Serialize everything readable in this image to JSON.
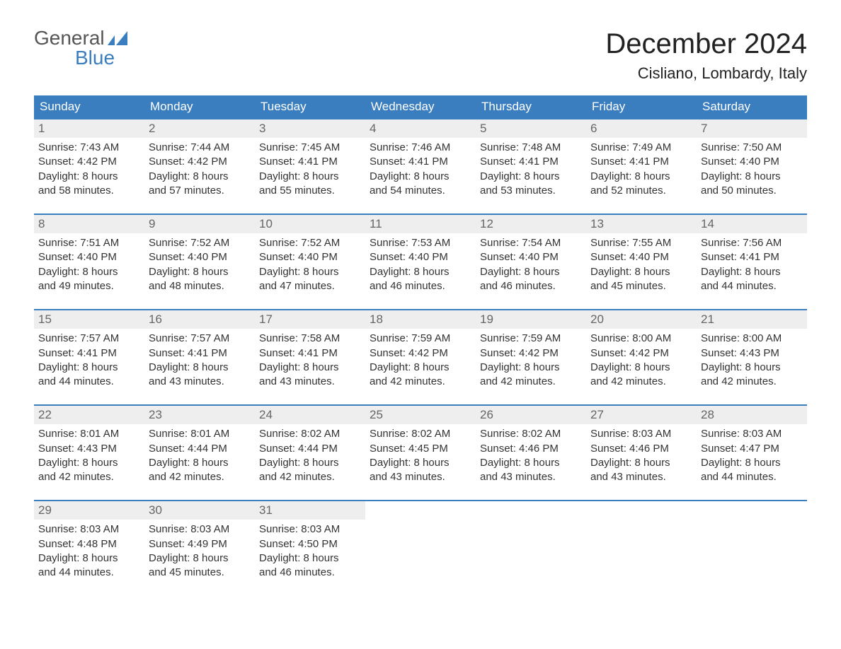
{
  "colors": {
    "header_bg": "#3a7ebf",
    "header_text": "#ffffff",
    "row_accent": "#3a7ebf",
    "daynum_bg": "#eeeeee",
    "daynum_text": "#666666",
    "body_text": "#333333",
    "page_bg": "#ffffff",
    "logo_gray": "#555555",
    "logo_blue": "#3a7ebf",
    "title_text": "#222222"
  },
  "typography": {
    "title_fontsize": 40,
    "location_fontsize": 22,
    "weekday_fontsize": 17,
    "daynum_fontsize": 17,
    "cell_fontsize": 15,
    "logo_fontsize": 28,
    "font_family": "Arial, Helvetica, sans-serif"
  },
  "logo": {
    "general": "General",
    "blue": "Blue"
  },
  "title": "December 2024",
  "location": "Cisliano, Lombardy, Italy",
  "weekdays": [
    "Sunday",
    "Monday",
    "Tuesday",
    "Wednesday",
    "Thursday",
    "Friday",
    "Saturday"
  ],
  "weeks": [
    [
      {
        "num": "1",
        "sunrise": "Sunrise: 7:43 AM",
        "sunset": "Sunset: 4:42 PM",
        "day1": "Daylight: 8 hours",
        "day2": "and 58 minutes."
      },
      {
        "num": "2",
        "sunrise": "Sunrise: 7:44 AM",
        "sunset": "Sunset: 4:42 PM",
        "day1": "Daylight: 8 hours",
        "day2": "and 57 minutes."
      },
      {
        "num": "3",
        "sunrise": "Sunrise: 7:45 AM",
        "sunset": "Sunset: 4:41 PM",
        "day1": "Daylight: 8 hours",
        "day2": "and 55 minutes."
      },
      {
        "num": "4",
        "sunrise": "Sunrise: 7:46 AM",
        "sunset": "Sunset: 4:41 PM",
        "day1": "Daylight: 8 hours",
        "day2": "and 54 minutes."
      },
      {
        "num": "5",
        "sunrise": "Sunrise: 7:48 AM",
        "sunset": "Sunset: 4:41 PM",
        "day1": "Daylight: 8 hours",
        "day2": "and 53 minutes."
      },
      {
        "num": "6",
        "sunrise": "Sunrise: 7:49 AM",
        "sunset": "Sunset: 4:41 PM",
        "day1": "Daylight: 8 hours",
        "day2": "and 52 minutes."
      },
      {
        "num": "7",
        "sunrise": "Sunrise: 7:50 AM",
        "sunset": "Sunset: 4:40 PM",
        "day1": "Daylight: 8 hours",
        "day2": "and 50 minutes."
      }
    ],
    [
      {
        "num": "8",
        "sunrise": "Sunrise: 7:51 AM",
        "sunset": "Sunset: 4:40 PM",
        "day1": "Daylight: 8 hours",
        "day2": "and 49 minutes."
      },
      {
        "num": "9",
        "sunrise": "Sunrise: 7:52 AM",
        "sunset": "Sunset: 4:40 PM",
        "day1": "Daylight: 8 hours",
        "day2": "and 48 minutes."
      },
      {
        "num": "10",
        "sunrise": "Sunrise: 7:52 AM",
        "sunset": "Sunset: 4:40 PM",
        "day1": "Daylight: 8 hours",
        "day2": "and 47 minutes."
      },
      {
        "num": "11",
        "sunrise": "Sunrise: 7:53 AM",
        "sunset": "Sunset: 4:40 PM",
        "day1": "Daylight: 8 hours",
        "day2": "and 46 minutes."
      },
      {
        "num": "12",
        "sunrise": "Sunrise: 7:54 AM",
        "sunset": "Sunset: 4:40 PM",
        "day1": "Daylight: 8 hours",
        "day2": "and 46 minutes."
      },
      {
        "num": "13",
        "sunrise": "Sunrise: 7:55 AM",
        "sunset": "Sunset: 4:40 PM",
        "day1": "Daylight: 8 hours",
        "day2": "and 45 minutes."
      },
      {
        "num": "14",
        "sunrise": "Sunrise: 7:56 AM",
        "sunset": "Sunset: 4:41 PM",
        "day1": "Daylight: 8 hours",
        "day2": "and 44 minutes."
      }
    ],
    [
      {
        "num": "15",
        "sunrise": "Sunrise: 7:57 AM",
        "sunset": "Sunset: 4:41 PM",
        "day1": "Daylight: 8 hours",
        "day2": "and 44 minutes."
      },
      {
        "num": "16",
        "sunrise": "Sunrise: 7:57 AM",
        "sunset": "Sunset: 4:41 PM",
        "day1": "Daylight: 8 hours",
        "day2": "and 43 minutes."
      },
      {
        "num": "17",
        "sunrise": "Sunrise: 7:58 AM",
        "sunset": "Sunset: 4:41 PM",
        "day1": "Daylight: 8 hours",
        "day2": "and 43 minutes."
      },
      {
        "num": "18",
        "sunrise": "Sunrise: 7:59 AM",
        "sunset": "Sunset: 4:42 PM",
        "day1": "Daylight: 8 hours",
        "day2": "and 42 minutes."
      },
      {
        "num": "19",
        "sunrise": "Sunrise: 7:59 AM",
        "sunset": "Sunset: 4:42 PM",
        "day1": "Daylight: 8 hours",
        "day2": "and 42 minutes."
      },
      {
        "num": "20",
        "sunrise": "Sunrise: 8:00 AM",
        "sunset": "Sunset: 4:42 PM",
        "day1": "Daylight: 8 hours",
        "day2": "and 42 minutes."
      },
      {
        "num": "21",
        "sunrise": "Sunrise: 8:00 AM",
        "sunset": "Sunset: 4:43 PM",
        "day1": "Daylight: 8 hours",
        "day2": "and 42 minutes."
      }
    ],
    [
      {
        "num": "22",
        "sunrise": "Sunrise: 8:01 AM",
        "sunset": "Sunset: 4:43 PM",
        "day1": "Daylight: 8 hours",
        "day2": "and 42 minutes."
      },
      {
        "num": "23",
        "sunrise": "Sunrise: 8:01 AM",
        "sunset": "Sunset: 4:44 PM",
        "day1": "Daylight: 8 hours",
        "day2": "and 42 minutes."
      },
      {
        "num": "24",
        "sunrise": "Sunrise: 8:02 AM",
        "sunset": "Sunset: 4:44 PM",
        "day1": "Daylight: 8 hours",
        "day2": "and 42 minutes."
      },
      {
        "num": "25",
        "sunrise": "Sunrise: 8:02 AM",
        "sunset": "Sunset: 4:45 PM",
        "day1": "Daylight: 8 hours",
        "day2": "and 43 minutes."
      },
      {
        "num": "26",
        "sunrise": "Sunrise: 8:02 AM",
        "sunset": "Sunset: 4:46 PM",
        "day1": "Daylight: 8 hours",
        "day2": "and 43 minutes."
      },
      {
        "num": "27",
        "sunrise": "Sunrise: 8:03 AM",
        "sunset": "Sunset: 4:46 PM",
        "day1": "Daylight: 8 hours",
        "day2": "and 43 minutes."
      },
      {
        "num": "28",
        "sunrise": "Sunrise: 8:03 AM",
        "sunset": "Sunset: 4:47 PM",
        "day1": "Daylight: 8 hours",
        "day2": "and 44 minutes."
      }
    ],
    [
      {
        "num": "29",
        "sunrise": "Sunrise: 8:03 AM",
        "sunset": "Sunset: 4:48 PM",
        "day1": "Daylight: 8 hours",
        "day2": "and 44 minutes."
      },
      {
        "num": "30",
        "sunrise": "Sunrise: 8:03 AM",
        "sunset": "Sunset: 4:49 PM",
        "day1": "Daylight: 8 hours",
        "day2": "and 45 minutes."
      },
      {
        "num": "31",
        "sunrise": "Sunrise: 8:03 AM",
        "sunset": "Sunset: 4:50 PM",
        "day1": "Daylight: 8 hours",
        "day2": "and 46 minutes."
      },
      null,
      null,
      null,
      null
    ]
  ]
}
